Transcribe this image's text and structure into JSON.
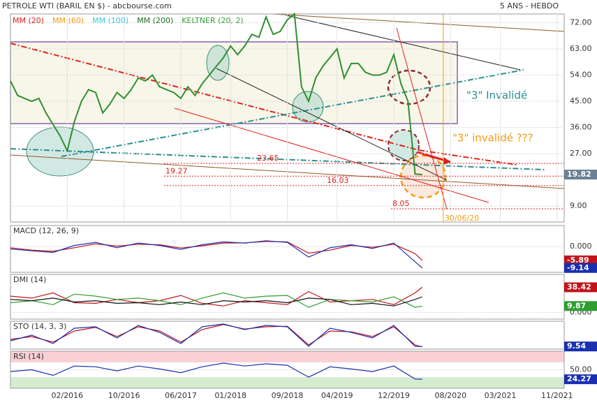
{
  "header": {
    "title": "PETROLE WTI (BARIL EN $) - abcbourse.com",
    "period": "5 ANS - HEBDO"
  },
  "chart_data": [
    {
      "type": "line",
      "title": null,
      "legend": [
        {
          "name": "MM (20)",
          "color": "#e0201b"
        },
        {
          "name": "MM (60)",
          "color": "#f39c12"
        },
        {
          "name": "MM (100)",
          "color": "#3cc6d6"
        },
        {
          "name": "MM (200)",
          "color": "#1f6e1f"
        },
        {
          "name": "KELTNER (20, 2)",
          "color": "#3c9b3c"
        }
      ],
      "x": [
        "2015-06",
        "2015-07",
        "2015-08",
        "2015-09",
        "2015-10",
        "2015-11",
        "2015-12",
        "2016-01",
        "2016-02",
        "2016-03",
        "2016-04",
        "2016-05",
        "2016-06",
        "2016-07",
        "2016-08",
        "2016-09",
        "2016-10",
        "2016-11",
        "2016-12",
        "2017-01",
        "2017-02",
        "2017-03",
        "2017-04",
        "2017-05",
        "2017-06",
        "2017-07",
        "2017-08",
        "2017-09",
        "2017-10",
        "2017-11",
        "2017-12",
        "2018-01",
        "2018-02",
        "2018-03",
        "2018-04",
        "2018-05",
        "2018-06",
        "2018-07",
        "2018-08",
        "2018-09",
        "2018-10",
        "2018-11",
        "2018-12",
        "2019-01",
        "2019-02",
        "2019-03",
        "2019-04",
        "2019-05",
        "2019-06",
        "2019-07",
        "2019-08",
        "2019-09",
        "2019-10",
        "2019-11",
        "2019-12",
        "2020-01",
        "2020-02",
        "2020-03",
        "2020-04"
      ],
      "series": [
        {
          "name": null,
          "color": "#2f8f2f",
          "last_label": true,
          "label_color": "#6b7f95",
          "values": [
            52,
            47,
            46,
            45,
            46,
            41,
            37,
            33,
            28,
            38,
            45,
            49,
            48,
            41,
            44,
            48,
            46,
            49,
            53,
            52,
            54,
            50,
            49,
            48,
            46,
            50,
            47,
            51,
            54,
            57,
            60,
            64,
            61,
            64,
            68,
            67,
            74,
            68,
            69,
            73,
            75,
            50,
            45,
            53,
            57,
            60,
            63,
            53,
            58,
            58,
            55,
            54,
            54,
            55,
            61,
            51,
            45,
            20,
            19.82
          ]
        }
      ],
      "xlim": [
        "2015-06",
        "2021-12"
      ],
      "xticks": [
        {
          "value": "2016-02",
          "label": "02/2016"
        },
        {
          "value": "2016-10",
          "label": "10/2016"
        },
        {
          "value": "2017-06",
          "label": "06/2017"
        },
        {
          "value": "2018-01",
          "label": "01/2018"
        },
        {
          "value": "2018-09",
          "label": "09/2018"
        },
        {
          "value": "2019-04",
          "label": "04/2019"
        },
        {
          "value": "2019-12",
          "label": "12/2019"
        },
        {
          "value": "2020-08",
          "label": "08/2020"
        },
        {
          "value": "2021-03",
          "label": "03/2021"
        },
        {
          "value": "2021-11",
          "label": "11/2021"
        }
      ],
      "ylim": [
        3.5,
        75
      ],
      "yticks": [
        {
          "value": 72,
          "label": "72.00"
        },
        {
          "value": 63,
          "label": "63.00"
        },
        {
          "value": 54,
          "label": "54.00"
        },
        {
          "value": 45,
          "label": "45.00"
        },
        {
          "value": 36,
          "label": "36.00"
        },
        {
          "value": 27,
          "label": "27.00"
        },
        {
          "value": 9,
          "label": "9.00"
        }
      ],
      "grid": true,
      "levels": [
        23.65,
        19.27,
        16.03,
        8.05
      ],
      "vline": {
        "x": "2020-06-30",
        "label": "30/06/20",
        "color": "#f39c12"
      },
      "annotations": [
        "\"3\" Invalidé",
        "\"3\" invalidé ???"
      ]
    },
    {
      "type": "line",
      "title": "MACD (12, 26, 9)",
      "x": [
        "2015-06",
        "2015-09",
        "2015-12",
        "2016-03",
        "2016-06",
        "2016-09",
        "2016-12",
        "2017-03",
        "2017-06",
        "2017-09",
        "2017-12",
        "2018-03",
        "2018-06",
        "2018-09",
        "2018-12",
        "2019-03",
        "2019-06",
        "2019-09",
        "2019-12",
        "2020-03",
        "2020-04"
      ],
      "series": [
        {
          "name": null,
          "color": "#c0141a",
          "last_label": true,
          "values": [
            -0.5,
            -1.5,
            -2.0,
            -0.5,
            1.2,
            0.2,
            1.0,
            0.8,
            -0.6,
            0.3,
            1.5,
            1.6,
            2.2,
            2.0,
            -2.8,
            -1.5,
            0.5,
            -0.3,
            1.0,
            -3.0,
            -5.89
          ]
        },
        {
          "name": null,
          "color": "#1a2fb0",
          "last_label": true,
          "values": [
            -1.0,
            -1.8,
            -2.5,
            0.5,
            1.8,
            -0.5,
            1.5,
            0.5,
            -1.2,
            0.8,
            2.0,
            1.5,
            2.5,
            1.8,
            -4.5,
            -0.5,
            0.8,
            -0.8,
            1.5,
            -6.5,
            -9.14
          ]
        }
      ],
      "ylim": [
        -11,
        9
      ],
      "yticks": [
        {
          "value": 0,
          "label": "0.000"
        }
      ]
    },
    {
      "type": "line",
      "title": "DMI (14)",
      "x": [
        "2015-06",
        "2015-09",
        "2015-12",
        "2016-03",
        "2016-06",
        "2016-09",
        "2016-12",
        "2017-03",
        "2017-06",
        "2017-09",
        "2017-12",
        "2018-03",
        "2018-06",
        "2018-09",
        "2018-12",
        "2019-03",
        "2019-06",
        "2019-09",
        "2019-12",
        "2020-03",
        "2020-04"
      ],
      "series": [
        {
          "name": null,
          "color": "#c0141a",
          "last_label": true,
          "values": [
            25,
            22,
            30,
            15,
            14,
            20,
            15,
            18,
            26,
            14,
            10,
            18,
            15,
            12,
            32,
            16,
            18,
            20,
            12,
            30,
            38.42
          ]
        },
        {
          "name": null,
          "color": "#2f9e2f",
          "last_label": true,
          "values": [
            15,
            18,
            12,
            28,
            25,
            20,
            22,
            18,
            12,
            22,
            30,
            22,
            25,
            26,
            8,
            20,
            18,
            16,
            24,
            8,
            9.87
          ]
        },
        {
          "name": null,
          "color": "#111111",
          "last_label": false,
          "values": [
            20,
            18,
            22,
            16,
            18,
            14,
            15,
            12,
            16,
            12,
            18,
            16,
            18,
            15,
            22,
            20,
            12,
            14,
            10,
            20,
            24
          ]
        }
      ],
      "ylim": [
        -10,
        58
      ],
      "yticks": [
        {
          "value": 0,
          "label": "0.000"
        }
      ]
    },
    {
      "type": "line",
      "title": "STO (14, 3, 3)",
      "x": [
        "2015-06",
        "2015-09",
        "2015-12",
        "2016-03",
        "2016-06",
        "2016-09",
        "2016-12",
        "2017-03",
        "2017-06",
        "2017-09",
        "2017-12",
        "2018-03",
        "2018-06",
        "2018-09",
        "2018-12",
        "2019-03",
        "2019-06",
        "2019-09",
        "2019-12",
        "2020-03",
        "2020-04"
      ],
      "series": [
        {
          "name": null,
          "color": "#c0141a",
          "last_label": false,
          "values": [
            35,
            45,
            25,
            65,
            78,
            45,
            80,
            65,
            25,
            70,
            88,
            72,
            80,
            82,
            15,
            65,
            62,
            45,
            80,
            15,
            8
          ]
        },
        {
          "name": null,
          "color": "#1a2fb0",
          "last_label": true,
          "values": [
            30,
            50,
            20,
            75,
            80,
            40,
            85,
            60,
            20,
            80,
            90,
            70,
            85,
            80,
            10,
            75,
            60,
            40,
            85,
            10,
            9.54
          ]
        }
      ],
      "ylim": [
        0,
        100
      ],
      "yticks": []
    },
    {
      "type": "line",
      "title": "RSI (14)",
      "x": [
        "2015-06",
        "2015-09",
        "2015-12",
        "2016-03",
        "2016-06",
        "2016-09",
        "2016-12",
        "2017-03",
        "2017-06",
        "2017-09",
        "2017-12",
        "2018-03",
        "2018-06",
        "2018-09",
        "2018-12",
        "2019-03",
        "2019-06",
        "2019-09",
        "2019-12",
        "2020-03",
        "2020-04"
      ],
      "series": [
        {
          "name": null,
          "color": "#1a2fb0",
          "last_label": true,
          "label_color": "#1a2fb0",
          "values": [
            45,
            50,
            35,
            60,
            58,
            47,
            60,
            52,
            42,
            58,
            68,
            60,
            66,
            62,
            30,
            58,
            52,
            45,
            60,
            25,
            24.27
          ]
        }
      ],
      "bands": [
        {
          "from": 70,
          "to": 100,
          "color": "#f9d0d4"
        },
        {
          "from": 0,
          "to": 30,
          "color": "#d6ecd0"
        }
      ],
      "ylim": [
        0,
        100
      ],
      "yticks": [
        {
          "value": 50,
          "label": "50.00"
        }
      ]
    }
  ]
}
